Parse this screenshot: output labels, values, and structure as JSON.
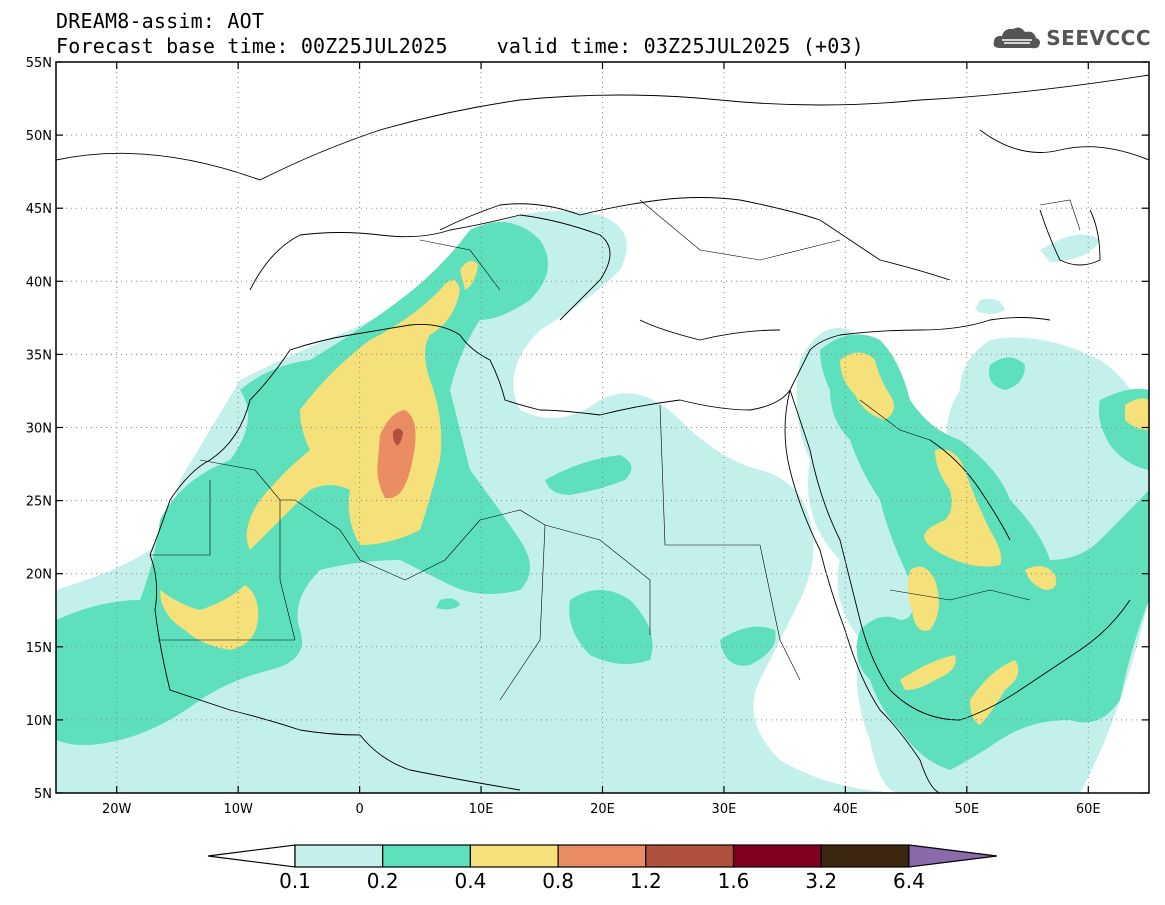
{
  "header": {
    "title_line1": "DREAM8-assim: AOT",
    "base_time_label": "Forecast base time: 00Z25JUL2025",
    "valid_time_label": "valid time: 03Z25JUL2025 (+03)",
    "brand": "SEEVCCC",
    "brand_icon": "cloud-logo-icon"
  },
  "map": {
    "lon_range": [
      -25,
      65
    ],
    "lat_range": [
      5,
      55
    ],
    "lon_ticks": [
      "20W",
      "10W",
      "0",
      "10E",
      "20E",
      "30E",
      "40E",
      "50E",
      "60E"
    ],
    "lat_ticks": [
      "55N",
      "50N",
      "45N",
      "40N",
      "35N",
      "30N",
      "25N",
      "20N",
      "15N",
      "10N",
      "5N"
    ],
    "grid": "dotted"
  },
  "legend": {
    "levels": [
      "0.1",
      "0.2",
      "0.4",
      "0.8",
      "1.2",
      "1.6",
      "3.2",
      "6.4"
    ],
    "colors": [
      "#ffffff",
      "#c4f0ec",
      "#5ee0bc",
      "#f5e07a",
      "#eb8d63",
      "#b0503f",
      "#800020",
      "#3b2610",
      "#8a6aa8"
    ]
  }
}
